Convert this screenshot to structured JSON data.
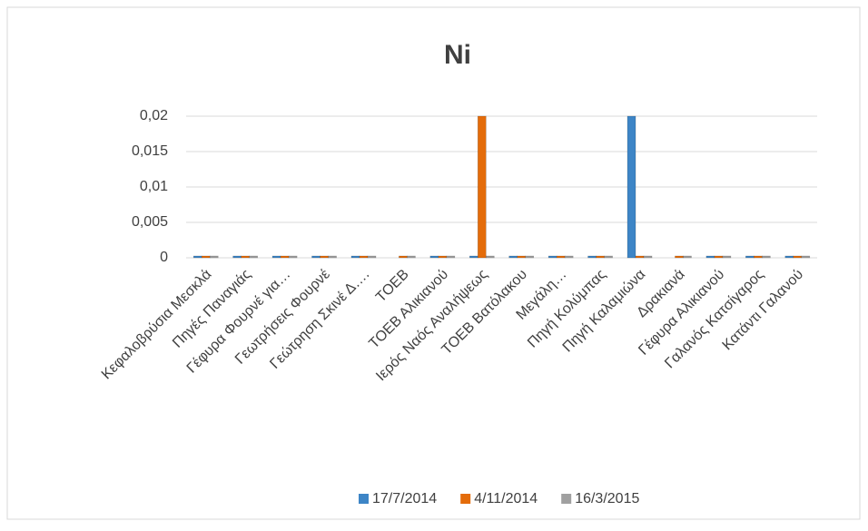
{
  "chart_data": {
    "type": "bar",
    "title": "Ni",
    "categories": [
      "Κεφαλοβρύσια Μεσκλά",
      "Πηγές Παναγιάς",
      "Γέφυρα Φουρνέ για…",
      "Γεωτρήσεις Φουρνέ",
      "Γεώτρηση Σκινέ Δ….",
      "ΤΟΕΒ",
      "ΤΟΕΒ Αλικιανού",
      "Ιερός Ναός Αναλήψεως",
      "ΤΟΕΒ Βατόλακου",
      "Μεγάλη…",
      "Πηγή Κολύμπας",
      "Πηγή Καλαμιώνα",
      "Δρακιανά",
      "Γέφυρα Αλικιανού",
      "Γαλανός Κατσίγαρος",
      "Κατάντι Γαλανού"
    ],
    "series": [
      {
        "name": "17/7/2014",
        "color": "#3d85c6",
        "values": [
          0,
          0,
          0,
          0,
          0,
          null,
          0,
          0,
          0,
          0,
          0,
          0.02,
          null,
          0,
          0,
          0
        ]
      },
      {
        "name": "4/11/2014",
        "color": "#e46c0a",
        "values": [
          0,
          0,
          0,
          0,
          0,
          0,
          0,
          0.02,
          0,
          0,
          0,
          0,
          0,
          0,
          0,
          0
        ]
      },
      {
        "name": "16/3/2015",
        "color": "#a0a0a0",
        "values": [
          0,
          0,
          0,
          0,
          0,
          0,
          0,
          0,
          0,
          0,
          0,
          0,
          0,
          0,
          0,
          0
        ]
      }
    ],
    "ylim": [
      0,
      0.02
    ],
    "yticks": [
      0,
      {
        "value": 0.005,
        "label": "0,005"
      },
      {
        "value": 0.01,
        "label": "0,01"
      },
      {
        "value": 0.015,
        "label": "0,015"
      },
      {
        "value": 0.02,
        "label": "0,02"
      }
    ],
    "grid": true,
    "legend": "bottom"
  }
}
